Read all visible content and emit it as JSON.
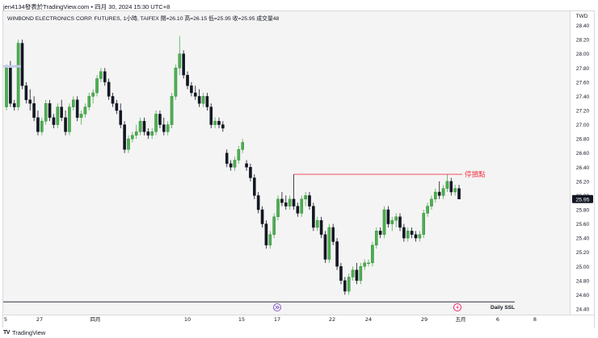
{
  "header": {
    "caption": "jen4134發表於TradingView.com • 四月 30, 2024 15:30 UTC+8"
  },
  "chart_header": {
    "symbol_line": "WINBOND ELECTRONICS CORP. FUTURES, 1小時, TAIFEX  開=26.10  高=26.15  低=25.95  收=25.95  成交量48"
  },
  "currency": "TWD",
  "footer": {
    "logo_text": "TV",
    "brand": "TradingView"
  },
  "colors": {
    "up": "#4caf50",
    "down": "#131722",
    "annotation": "#f23645",
    "last_price_bg": "#131722",
    "background": "#f4f4f4"
  },
  "icons": [
    "tradingview-logo-icon",
    "forward-arrow-icon",
    "lightning-icon"
  ],
  "chart_data": {
    "type": "candlestick",
    "title": "",
    "ylim": [
      24.32,
      28.6
    ],
    "y_ticks": [
      "28.40",
      "28.20",
      "28.00",
      "27.80",
      "27.60",
      "27.40",
      "27.20",
      "27.00",
      "26.80",
      "26.60",
      "26.40",
      "26.20",
      "26.00",
      "25.80",
      "25.60",
      "25.40",
      "25.20",
      "25.00",
      "24.80",
      "24.60",
      "24.40"
    ],
    "x_ticks": [
      "5",
      "27",
      "四月",
      "10",
      "15",
      "17",
      "22",
      "24",
      "29",
      "五月",
      "6",
      "8"
    ],
    "last_price": "25.95",
    "grid": false,
    "candles": [
      {
        "o": 27.25,
        "h": 27.85,
        "l": 27.2,
        "c": 27.8
      },
      {
        "o": 27.8,
        "h": 27.9,
        "l": 27.25,
        "c": 27.3
      },
      {
        "o": 27.3,
        "h": 27.35,
        "l": 27.2,
        "c": 27.25
      },
      {
        "o": 27.25,
        "h": 28.2,
        "l": 27.2,
        "c": 28.15
      },
      {
        "o": 28.15,
        "h": 28.2,
        "l": 27.5,
        "c": 27.55
      },
      {
        "o": 27.55,
        "h": 27.6,
        "l": 27.3,
        "c": 27.35
      },
      {
        "o": 27.35,
        "h": 27.5,
        "l": 27.2,
        "c": 27.3
      },
      {
        "o": 27.3,
        "h": 27.4,
        "l": 27.05,
        "c": 27.1
      },
      {
        "o": 27.1,
        "h": 27.2,
        "l": 26.85,
        "c": 26.9
      },
      {
        "o": 26.9,
        "h": 27.1,
        "l": 26.85,
        "c": 27.05
      },
      {
        "o": 27.05,
        "h": 27.35,
        "l": 27.0,
        "c": 27.3
      },
      {
        "o": 27.3,
        "h": 27.35,
        "l": 27.05,
        "c": 27.1
      },
      {
        "o": 27.1,
        "h": 27.15,
        "l": 26.95,
        "c": 27.0
      },
      {
        "o": 27.0,
        "h": 27.3,
        "l": 26.95,
        "c": 27.25
      },
      {
        "o": 27.25,
        "h": 27.35,
        "l": 27.05,
        "c": 27.1
      },
      {
        "o": 27.1,
        "h": 27.2,
        "l": 26.85,
        "c": 26.9
      },
      {
        "o": 26.9,
        "h": 27.3,
        "l": 26.85,
        "c": 27.25
      },
      {
        "o": 27.25,
        "h": 27.4,
        "l": 27.2,
        "c": 27.35
      },
      {
        "o": 27.35,
        "h": 27.4,
        "l": 27.05,
        "c": 27.1
      },
      {
        "o": 27.1,
        "h": 27.2,
        "l": 27.0,
        "c": 27.15
      },
      {
        "o": 27.15,
        "h": 27.3,
        "l": 27.1,
        "c": 27.25
      },
      {
        "o": 27.25,
        "h": 27.45,
        "l": 27.2,
        "c": 27.4
      },
      {
        "o": 27.4,
        "h": 27.5,
        "l": 27.3,
        "c": 27.45
      },
      {
        "o": 27.45,
        "h": 27.7,
        "l": 27.4,
        "c": 27.65
      },
      {
        "o": 27.65,
        "h": 27.8,
        "l": 27.6,
        "c": 27.75
      },
      {
        "o": 27.75,
        "h": 27.8,
        "l": 27.55,
        "c": 27.6
      },
      {
        "o": 27.6,
        "h": 27.65,
        "l": 27.35,
        "c": 27.4
      },
      {
        "o": 27.4,
        "h": 27.45,
        "l": 27.25,
        "c": 27.3
      },
      {
        "o": 27.3,
        "h": 27.35,
        "l": 27.15,
        "c": 27.2
      },
      {
        "o": 27.2,
        "h": 27.3,
        "l": 26.95,
        "c": 27.0
      },
      {
        "o": 27.0,
        "h": 27.05,
        "l": 26.6,
        "c": 26.65
      },
      {
        "o": 26.65,
        "h": 26.85,
        "l": 26.6,
        "c": 26.8
      },
      {
        "o": 26.8,
        "h": 26.9,
        "l": 26.75,
        "c": 26.85
      },
      {
        "o": 26.85,
        "h": 27.0,
        "l": 26.8,
        "c": 26.9
      },
      {
        "o": 26.9,
        "h": 27.1,
        "l": 26.85,
        "c": 27.05
      },
      {
        "o": 27.05,
        "h": 27.1,
        "l": 26.85,
        "c": 26.9
      },
      {
        "o": 26.9,
        "h": 26.95,
        "l": 26.8,
        "c": 26.85
      },
      {
        "o": 26.85,
        "h": 26.95,
        "l": 26.8,
        "c": 26.9
      },
      {
        "o": 26.9,
        "h": 27.2,
        "l": 26.85,
        "c": 27.15
      },
      {
        "o": 27.15,
        "h": 27.2,
        "l": 26.95,
        "c": 27.0
      },
      {
        "o": 27.0,
        "h": 27.1,
        "l": 26.85,
        "c": 26.9
      },
      {
        "o": 26.9,
        "h": 27.05,
        "l": 26.85,
        "c": 27.0
      },
      {
        "o": 27.0,
        "h": 27.45,
        "l": 26.95,
        "c": 27.4
      },
      {
        "o": 27.4,
        "h": 27.85,
        "l": 27.35,
        "c": 27.8
      },
      {
        "o": 27.8,
        "h": 28.25,
        "l": 27.7,
        "c": 28.0
      },
      {
        "o": 28.0,
        "h": 28.05,
        "l": 27.65,
        "c": 27.7
      },
      {
        "o": 27.7,
        "h": 27.75,
        "l": 27.5,
        "c": 27.55
      },
      {
        "o": 27.55,
        "h": 27.6,
        "l": 27.4,
        "c": 27.45
      },
      {
        "o": 27.45,
        "h": 27.55,
        "l": 27.35,
        "c": 27.4
      },
      {
        "o": 27.4,
        "h": 27.5,
        "l": 27.25,
        "c": 27.3
      },
      {
        "o": 27.3,
        "h": 27.45,
        "l": 27.25,
        "c": 27.4
      },
      {
        "o": 27.4,
        "h": 27.45,
        "l": 27.2,
        "c": 27.25
      },
      {
        "o": 27.25,
        "h": 27.3,
        "l": 26.95,
        "c": 27.0
      },
      {
        "o": 27.0,
        "h": 27.1,
        "l": 26.95,
        "c": 27.05
      },
      {
        "o": 27.05,
        "h": 27.1,
        "l": 26.95,
        "c": 27.0
      },
      {
        "o": 27.0,
        "h": 27.05,
        "l": 26.9,
        "c": 26.95
      },
      {
        "o": 26.6,
        "h": 26.65,
        "l": 26.4,
        "c": 26.45
      },
      {
        "o": 26.45,
        "h": 26.5,
        "l": 26.35,
        "c": 26.4
      },
      {
        "o": 26.4,
        "h": 26.55,
        "l": 26.35,
        "c": 26.5
      },
      {
        "o": 26.5,
        "h": 26.7,
        "l": 26.45,
        "c": 26.65
      },
      {
        "o": 26.65,
        "h": 26.8,
        "l": 26.6,
        "c": 26.75
      },
      {
        "o": 26.45,
        "h": 26.5,
        "l": 26.35,
        "c": 26.4
      },
      {
        "o": 26.4,
        "h": 26.45,
        "l": 26.2,
        "c": 26.25
      },
      {
        "o": 26.25,
        "h": 26.3,
        "l": 25.95,
        "c": 26.0
      },
      {
        "o": 26.0,
        "h": 26.05,
        "l": 25.75,
        "c": 25.8
      },
      {
        "o": 25.8,
        "h": 25.85,
        "l": 25.55,
        "c": 25.6
      },
      {
        "o": 25.6,
        "h": 25.65,
        "l": 25.25,
        "c": 25.3
      },
      {
        "o": 25.3,
        "h": 25.5,
        "l": 25.25,
        "c": 25.45
      },
      {
        "o": 25.45,
        "h": 25.75,
        "l": 25.4,
        "c": 25.7
      },
      {
        "o": 25.7,
        "h": 26.0,
        "l": 25.65,
        "c": 25.95
      },
      {
        "o": 25.95,
        "h": 26.05,
        "l": 25.85,
        "c": 25.9
      },
      {
        "o": 25.9,
        "h": 26.0,
        "l": 25.8,
        "c": 25.85
      },
      {
        "o": 25.85,
        "h": 26.0,
        "l": 25.8,
        "c": 25.95
      },
      {
        "o": 25.95,
        "h": 26.3,
        "l": 25.8,
        "c": 25.85
      },
      {
        "o": 25.85,
        "h": 25.9,
        "l": 25.7,
        "c": 25.75
      },
      {
        "o": 25.75,
        "h": 26.0,
        "l": 25.7,
        "c": 25.95
      },
      {
        "o": 25.95,
        "h": 26.05,
        "l": 25.85,
        "c": 26.0
      },
      {
        "o": 26.0,
        "h": 26.05,
        "l": 25.8,
        "c": 25.85
      },
      {
        "o": 25.85,
        "h": 25.9,
        "l": 25.5,
        "c": 25.55
      },
      {
        "o": 25.55,
        "h": 25.7,
        "l": 25.5,
        "c": 25.65
      },
      {
        "o": 25.65,
        "h": 25.7,
        "l": 25.4,
        "c": 25.45
      },
      {
        "o": 25.45,
        "h": 25.5,
        "l": 25.05,
        "c": 25.1
      },
      {
        "o": 25.1,
        "h": 25.6,
        "l": 25.05,
        "c": 25.55
      },
      {
        "o": 25.55,
        "h": 25.6,
        "l": 25.3,
        "c": 25.35
      },
      {
        "o": 25.35,
        "h": 25.4,
        "l": 24.95,
        "c": 25.0
      },
      {
        "o": 25.0,
        "h": 25.05,
        "l": 24.75,
        "c": 24.8
      },
      {
        "o": 24.8,
        "h": 24.85,
        "l": 24.6,
        "c": 24.65
      },
      {
        "o": 24.65,
        "h": 24.9,
        "l": 24.6,
        "c": 24.85
      },
      {
        "o": 24.85,
        "h": 25.0,
        "l": 24.8,
        "c": 24.95
      },
      {
        "o": 24.95,
        "h": 25.05,
        "l": 24.75,
        "c": 24.8
      },
      {
        "o": 24.8,
        "h": 25.05,
        "l": 24.75,
        "c": 25.0
      },
      {
        "o": 25.0,
        "h": 25.1,
        "l": 24.95,
        "c": 25.05
      },
      {
        "o": 25.05,
        "h": 25.1,
        "l": 25.0,
        "c": 25.05
      },
      {
        "o": 25.05,
        "h": 25.35,
        "l": 25.0,
        "c": 25.3
      },
      {
        "o": 25.3,
        "h": 25.55,
        "l": 25.25,
        "c": 25.5
      },
      {
        "o": 25.5,
        "h": 25.55,
        "l": 25.4,
        "c": 25.45
      },
      {
        "o": 25.45,
        "h": 25.85,
        "l": 25.4,
        "c": 25.8
      },
      {
        "o": 25.8,
        "h": 25.85,
        "l": 25.55,
        "c": 25.6
      },
      {
        "o": 25.6,
        "h": 25.7,
        "l": 25.5,
        "c": 25.65
      },
      {
        "o": 25.65,
        "h": 25.75,
        "l": 25.55,
        "c": 25.7
      },
      {
        "o": 25.7,
        "h": 25.75,
        "l": 25.5,
        "c": 25.55
      },
      {
        "o": 25.55,
        "h": 25.6,
        "l": 25.35,
        "c": 25.4
      },
      {
        "o": 25.4,
        "h": 25.55,
        "l": 25.35,
        "c": 25.5
      },
      {
        "o": 25.5,
        "h": 25.55,
        "l": 25.4,
        "c": 25.45
      },
      {
        "o": 25.45,
        "h": 25.5,
        "l": 25.35,
        "c": 25.4
      },
      {
        "o": 25.4,
        "h": 25.5,
        "l": 25.35,
        "c": 25.45
      },
      {
        "o": 25.45,
        "h": 25.8,
        "l": 25.4,
        "c": 25.75
      },
      {
        "o": 25.75,
        "h": 25.9,
        "l": 25.7,
        "c": 25.85
      },
      {
        "o": 25.85,
        "h": 26.0,
        "l": 25.8,
        "c": 25.95
      },
      {
        "o": 25.95,
        "h": 26.1,
        "l": 25.9,
        "c": 26.05
      },
      {
        "o": 26.05,
        "h": 26.2,
        "l": 25.95,
        "c": 26.0
      },
      {
        "o": 26.0,
        "h": 26.15,
        "l": 25.95,
        "c": 26.1
      },
      {
        "o": 26.1,
        "h": 26.3,
        "l": 26.05,
        "c": 26.2
      },
      {
        "o": 26.2,
        "h": 26.25,
        "l": 26.0,
        "c": 26.05
      },
      {
        "o": 26.05,
        "h": 26.15,
        "l": 26.0,
        "c": 26.1
      },
      {
        "o": 26.1,
        "h": 26.15,
        "l": 25.95,
        "c": 25.95
      }
    ],
    "stop_loss": {
      "label": "停損點",
      "value": 26.3
    },
    "daily_ssl": {
      "label": "Daily SSL",
      "value": 24.5
    },
    "markers": [
      {
        "icon": "forward-arrow-icon",
        "label": "17"
      },
      {
        "icon": "lightning-icon",
        "label": "五月"
      }
    ]
  }
}
